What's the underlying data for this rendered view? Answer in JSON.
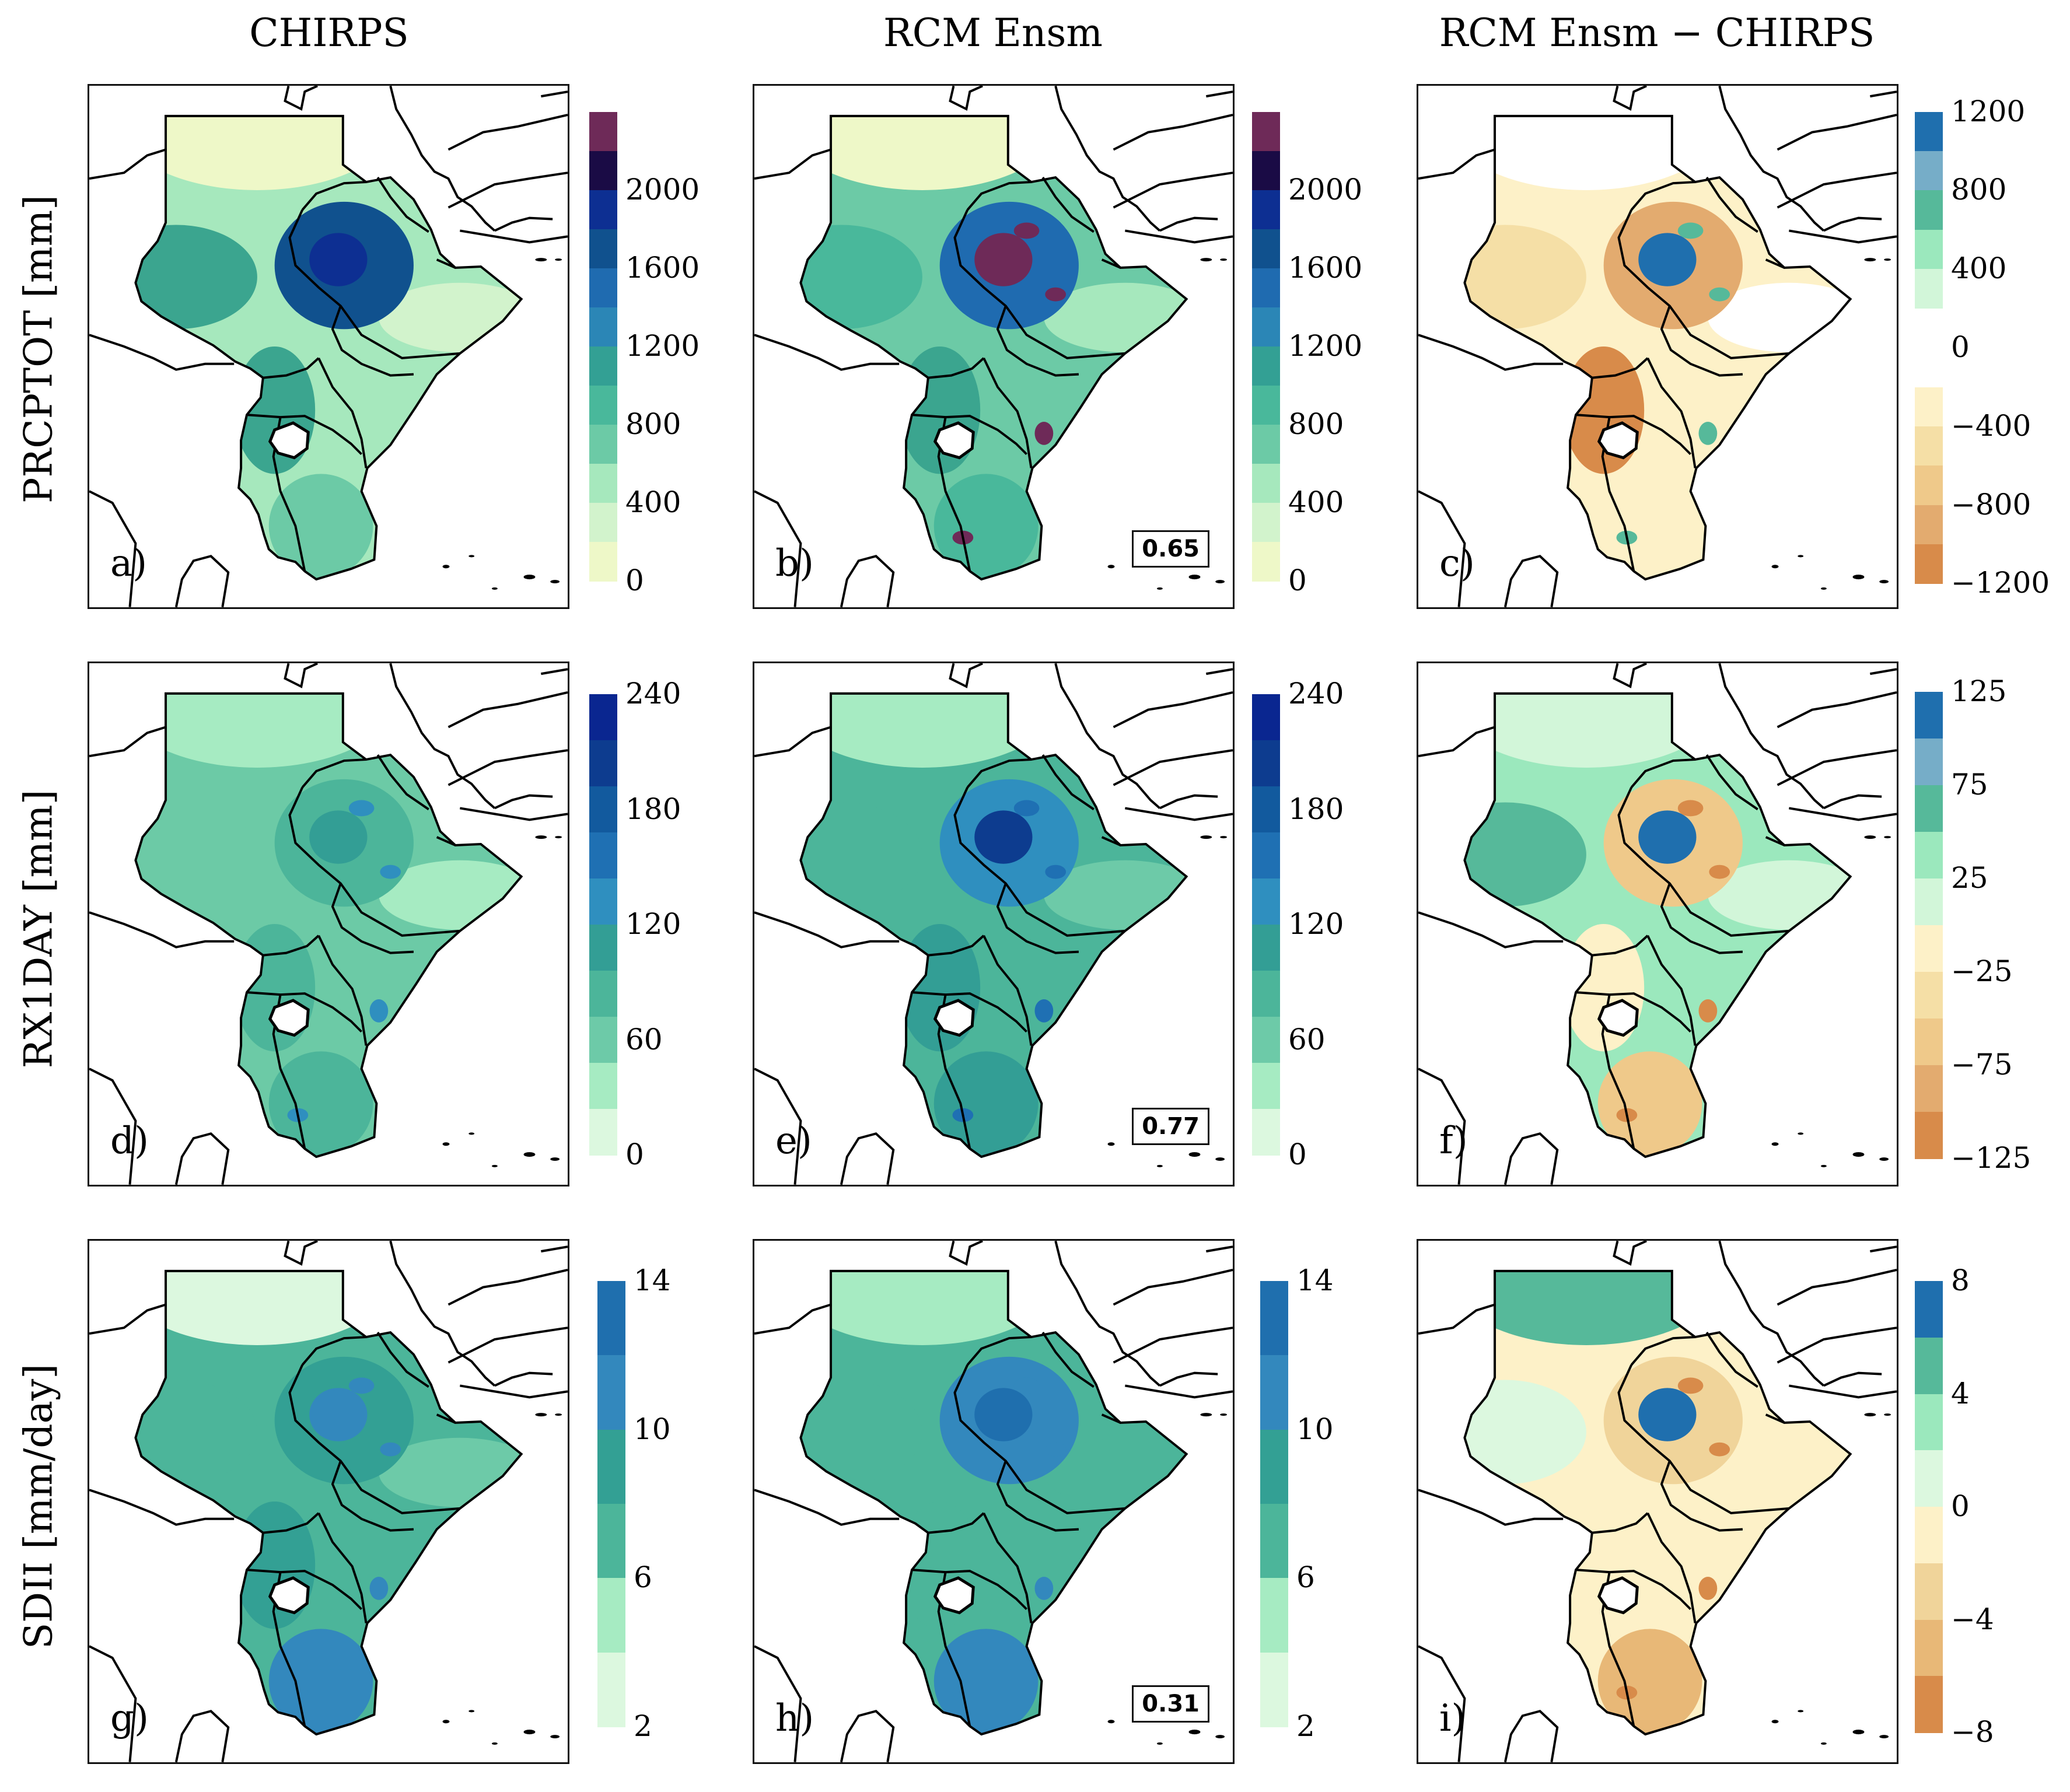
{
  "columns": [
    "CHIRPS",
    "RCM Ensm",
    "RCM Ensm − CHIRPS"
  ],
  "rows": [
    "PRCPTOT [mm]",
    "RX1DAY [mm]",
    "SDII [mm/day]"
  ],
  "panels": [
    {
      "label": "a)",
      "map": "a"
    },
    {
      "label": "b)",
      "map": "b",
      "corr": "0.65"
    },
    {
      "label": "c)",
      "map": "c"
    },
    {
      "label": "d)",
      "map": "d"
    },
    {
      "label": "e)",
      "map": "e",
      "corr": "0.77"
    },
    {
      "label": "f)",
      "map": "f"
    },
    {
      "label": "g)",
      "map": "g"
    },
    {
      "label": "h)",
      "map": "h",
      "corr": "0.31"
    },
    {
      "label": "i)",
      "map": "i"
    }
  ],
  "colorbars": {
    "prcptot_abs": {
      "colors": [
        "#eef8c8",
        "#d2f3cc",
        "#a6e8bd",
        "#6ccaa6",
        "#49b89b",
        "#33a094",
        "#2b86b6",
        "#1f6bb0",
        "#10518e",
        "#0d2f92",
        "#1a0b45",
        "#6e2a58"
      ],
      "ticks": [
        "0",
        "400",
        "800",
        "1200",
        "1600",
        "2000"
      ]
    },
    "prcptot_diff": {
      "pos_colors": [
        "#d2f6d9",
        "#9be8bd",
        "#56b99a",
        "#76adc8",
        "#1f6fae"
      ],
      "neg_colors": [
        "#fdf1c8",
        "#f5dfa6",
        "#efc98a",
        "#e3ab6f",
        "#d88b4a"
      ],
      "ticks": [
        "1200",
        "800",
        "400",
        "0",
        "−400",
        "−800",
        "−1200"
      ]
    },
    "rx1day_abs": {
      "colors": [
        "#dcf8df",
        "#a6ebc2",
        "#6dcaa8",
        "#4cb59a",
        "#339e95",
        "#2f8fbf",
        "#1f70b3",
        "#125a9e",
        "#0d3c8f",
        "#0a2690"
      ],
      "ticks": [
        "0",
        "60",
        "120",
        "180",
        "240"
      ]
    },
    "rx1day_diff": {
      "colors": [
        "#1f6fae",
        "#76adc8",
        "#56b99a",
        "#9be8bd",
        "#d2f6d9",
        "#fdf1c8",
        "#f5dfa6",
        "#efc98a",
        "#e3ab6f",
        "#d88b4a"
      ],
      "ticks": [
        "125",
        "75",
        "25",
        "−25",
        "−75",
        "−125"
      ]
    },
    "sdii_abs": {
      "colors": [
        "#dcf8df",
        "#a6ebc2",
        "#4cb59a",
        "#33a094",
        "#3388bd",
        "#1f6fae"
      ],
      "ticks": [
        "2",
        "6",
        "10",
        "14"
      ]
    },
    "sdii_diff": {
      "colors": [
        "#1f6fae",
        "#56b99a",
        "#9be8bd",
        "#dcf8df",
        "#fdf1c8",
        "#f0d49a",
        "#e8b877",
        "#d88b4a"
      ],
      "ticks": [
        "8",
        "4",
        "0",
        "−4",
        "−8"
      ]
    }
  }
}
